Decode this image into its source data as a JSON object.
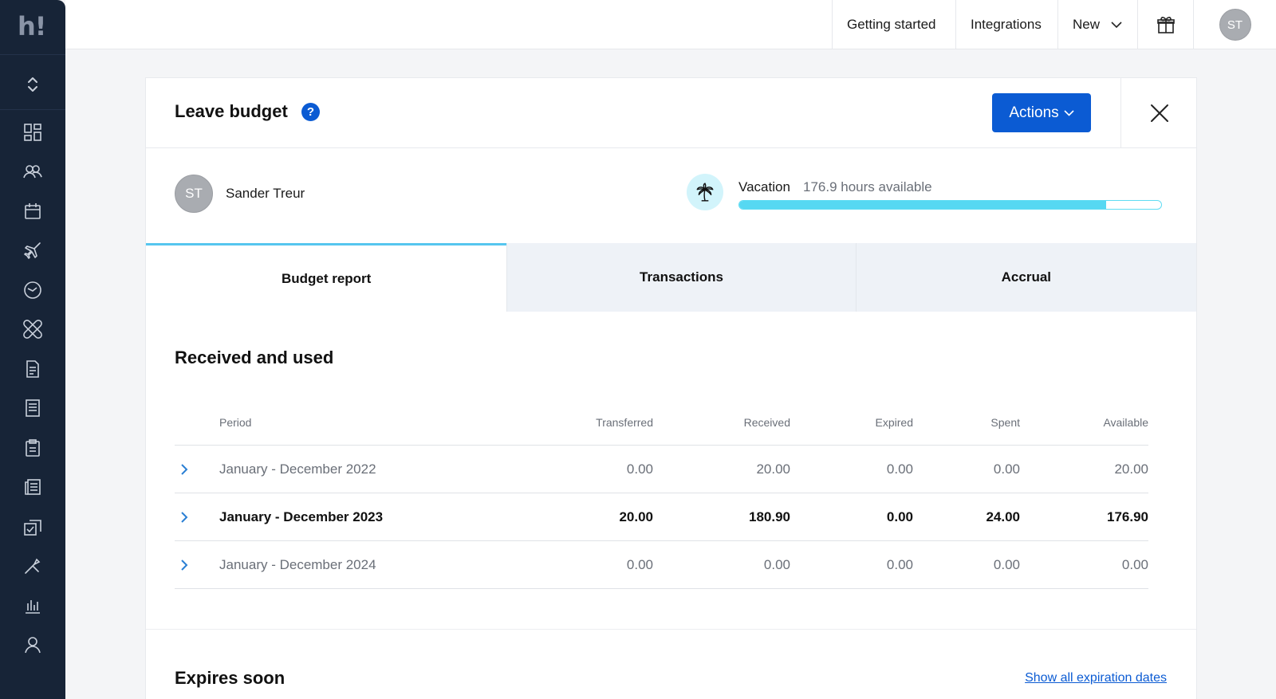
{
  "app": {
    "logo_text": "h!"
  },
  "sidebar": {
    "collapse_icon": "chevron-up-down-icon",
    "items": [
      {
        "name": "dashboard",
        "icon": "dashboard-icon"
      },
      {
        "name": "employees",
        "icon": "users-icon"
      },
      {
        "name": "calendar",
        "icon": "calendar-icon"
      },
      {
        "name": "leave",
        "icon": "airplane-icon"
      },
      {
        "name": "time",
        "icon": "clock-icon"
      },
      {
        "name": "absence",
        "icon": "bandage-icon"
      },
      {
        "name": "documents",
        "icon": "document-icon"
      },
      {
        "name": "payroll",
        "icon": "receipt-icon"
      },
      {
        "name": "tasks",
        "icon": "clipboard-icon"
      },
      {
        "name": "files",
        "icon": "files-icon"
      },
      {
        "name": "approvals",
        "icon": "check-copy-icon"
      },
      {
        "name": "tools",
        "icon": "tools-icon"
      },
      {
        "name": "reports",
        "icon": "bar-chart-icon"
      },
      {
        "name": "profile",
        "icon": "user-icon"
      }
    ]
  },
  "topbar": {
    "getting_started": "Getting started",
    "integrations": "Integrations",
    "new_label": "New",
    "user_initials": "ST"
  },
  "panel": {
    "title": "Leave budget",
    "help_symbol": "?",
    "actions_label": "Actions",
    "employee": {
      "initials": "ST",
      "name": "Sander Treur"
    },
    "budget": {
      "type": "Vacation",
      "hours_text": "176.9 hours available",
      "fill_percent": 87
    },
    "tabs": [
      {
        "label": "Budget report",
        "active": true
      },
      {
        "label": "Transactions",
        "active": false
      },
      {
        "label": "Accrual",
        "active": false
      }
    ],
    "section_title": "Received and used",
    "table": {
      "headers": {
        "period": "Period",
        "transferred": "Transferred",
        "received": "Received",
        "expired": "Expired",
        "spent": "Spent",
        "available": "Available"
      },
      "rows": [
        {
          "period": "January - December 2022",
          "transferred": "0.00",
          "received": "20.00",
          "expired": "0.00",
          "spent": "0.00",
          "available": "20.00"
        },
        {
          "period": "January - December 2023",
          "transferred": "20.00",
          "received": "180.90",
          "expired": "0.00",
          "spent": "24.00",
          "available": "176.90"
        },
        {
          "period": "January - December 2024",
          "transferred": "0.00",
          "received": "0.00",
          "expired": "0.00",
          "spent": "0.00",
          "available": "0.00"
        }
      ]
    },
    "expires_title": "Expires soon",
    "expires_link": "Show all expiration dates"
  },
  "colors": {
    "sidebar": "#172437",
    "accent": "#0b5bd3",
    "progress": "#56d8f2"
  }
}
